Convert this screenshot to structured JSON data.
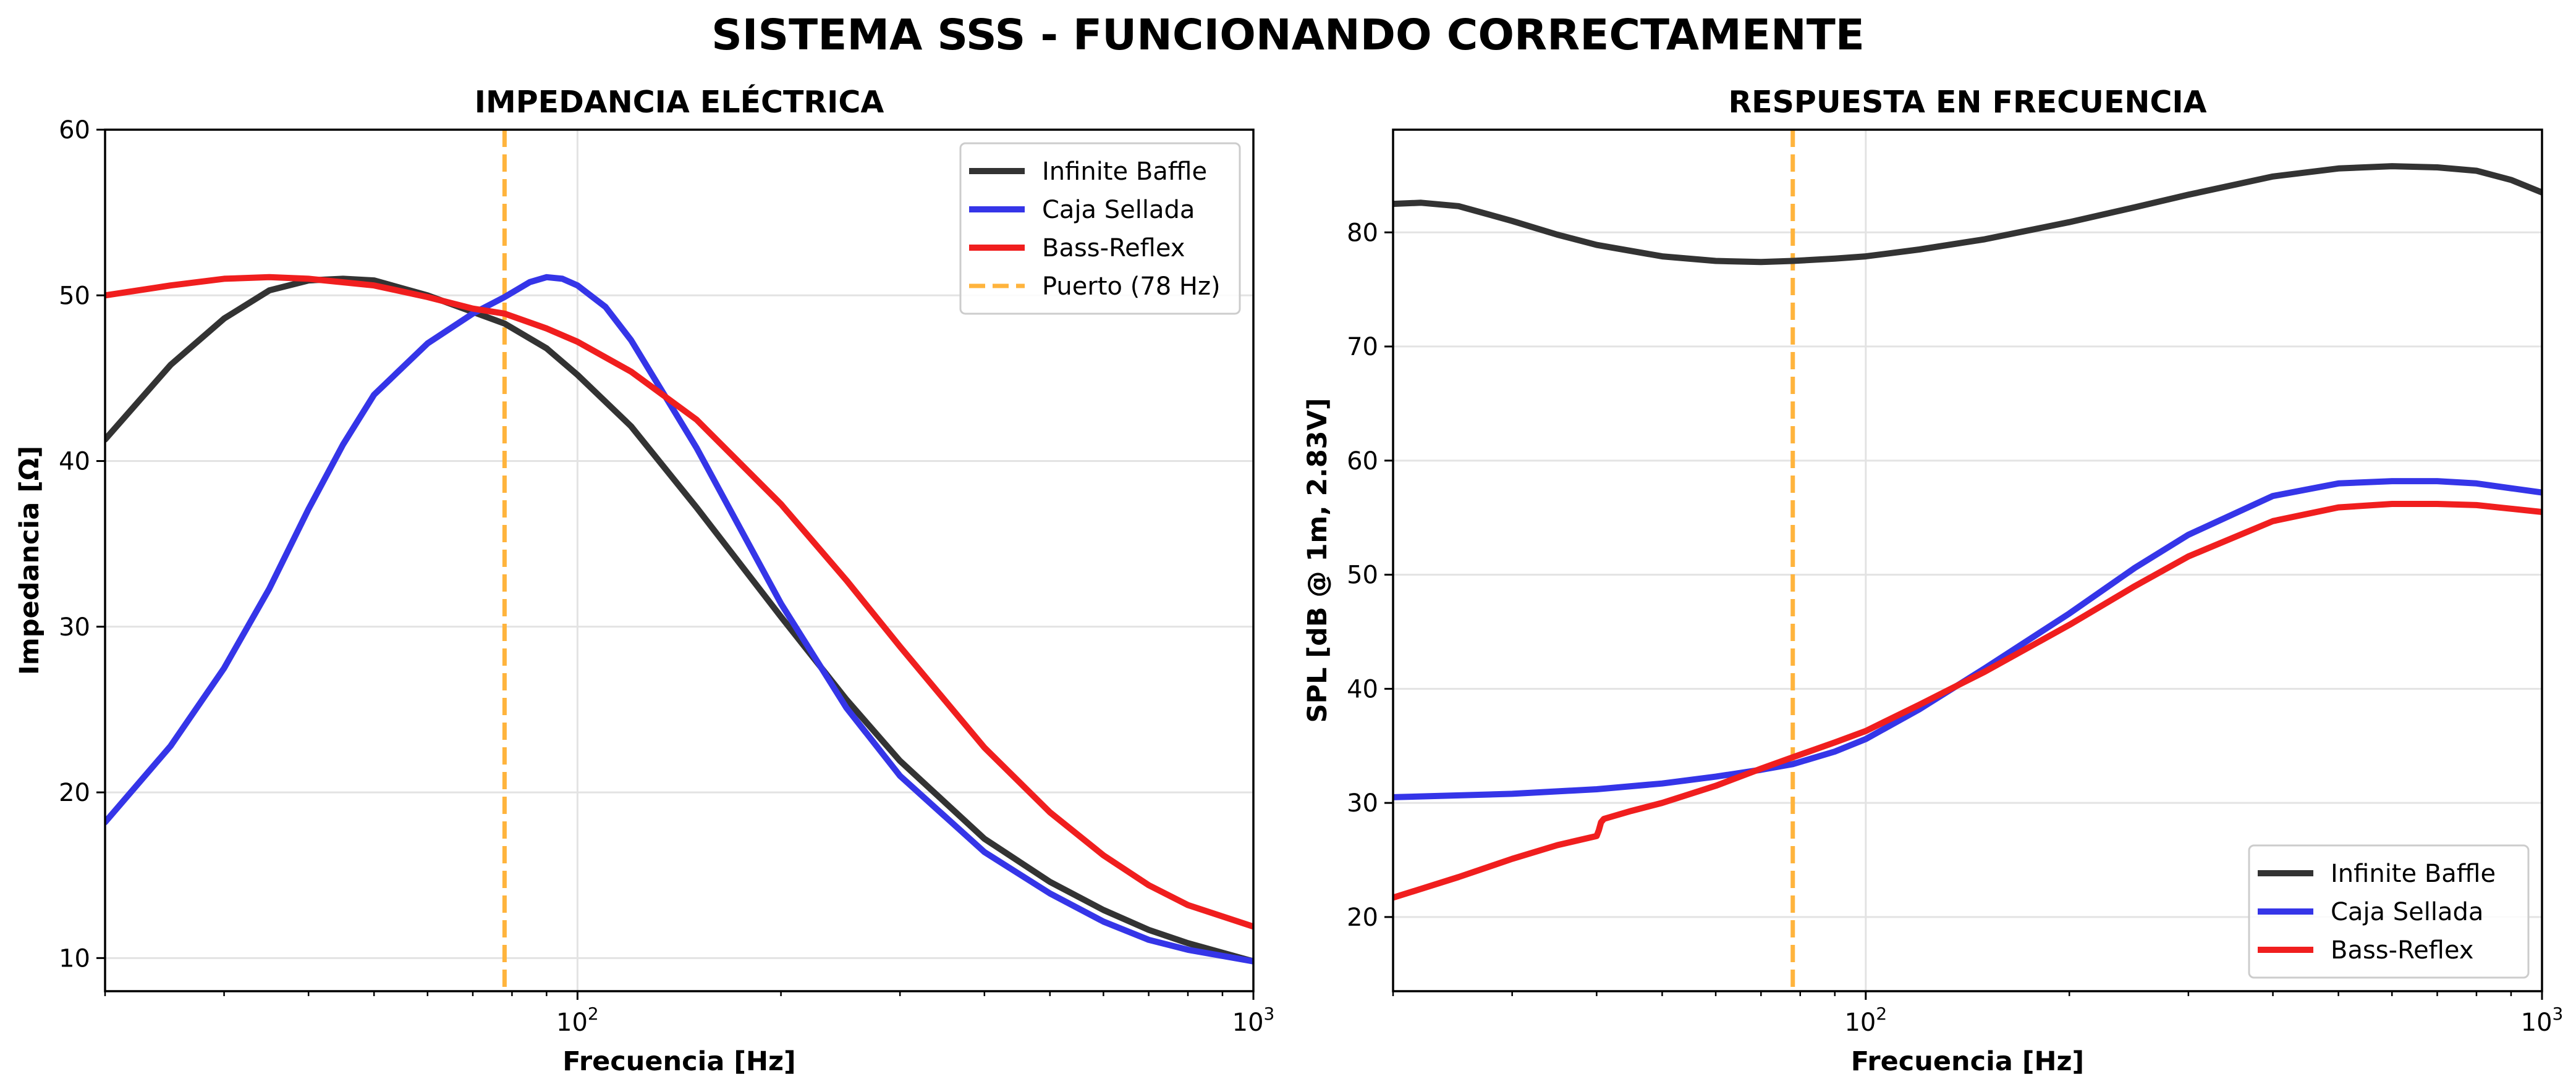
{
  "figure": {
    "suptitle": "SISTEMA SSS - FUNCIONANDO CORRECTAMENTE"
  },
  "chart_data": [
    {
      "type": "line",
      "title": "IMPEDANCIA ELÉCTRICA",
      "xlabel": "Frecuencia [Hz]",
      "ylabel": "Impedancia [Ω]",
      "xscale": "log",
      "xlim": [
        20,
        1000
      ],
      "ylim": [
        8,
        60
      ],
      "yticks": [
        10,
        20,
        30,
        40,
        50,
        60
      ],
      "xticks": [
        {
          "value": 100,
          "base": "10",
          "exp": "2"
        },
        {
          "value": 1000,
          "base": "10",
          "exp": "3"
        }
      ],
      "grid": true,
      "legend": "top-right",
      "vline": {
        "x": 78,
        "name": "Puerto (78 Hz)",
        "color": "#ffb43d",
        "dashed": true
      },
      "series": [
        {
          "name": "Infinite Baffle",
          "color": "#333333",
          "x": [
            20,
            25,
            30,
            35,
            40,
            45,
            50,
            60,
            70,
            78,
            90,
            100,
            120,
            150,
            200,
            250,
            300,
            400,
            500,
            600,
            700,
            800,
            1000
          ],
          "y": [
            41.3,
            45.8,
            48.6,
            50.3,
            50.9,
            51.0,
            50.9,
            50.0,
            49.0,
            48.3,
            46.8,
            45.2,
            42.1,
            37.2,
            30.6,
            25.6,
            21.9,
            17.2,
            14.6,
            12.9,
            11.7,
            10.9,
            9.8
          ]
        },
        {
          "name": "Caja Sellada",
          "color": "#3535e8",
          "x": [
            20,
            25,
            30,
            35,
            40,
            45,
            50,
            60,
            70,
            78,
            85,
            90,
            95,
            100,
            110,
            120,
            150,
            200,
            250,
            300,
            400,
            500,
            600,
            700,
            800,
            1000
          ],
          "y": [
            18.2,
            22.8,
            27.5,
            32.3,
            37.1,
            41.0,
            44.0,
            47.1,
            48.9,
            49.9,
            50.8,
            51.1,
            51.0,
            50.6,
            49.3,
            47.3,
            40.8,
            31.4,
            25.1,
            21.0,
            16.4,
            13.9,
            12.2,
            11.1,
            10.5,
            9.8
          ]
        },
        {
          "name": "Bass-Reflex",
          "color": "#f01e1e",
          "x": [
            20,
            25,
            30,
            35,
            40,
            50,
            60,
            70,
            78,
            90,
            100,
            120,
            150,
            200,
            250,
            300,
            400,
            500,
            600,
            700,
            800,
            1000
          ],
          "y": [
            50.0,
            50.6,
            51.0,
            51.1,
            51.0,
            50.6,
            49.9,
            49.2,
            48.9,
            48.0,
            47.2,
            45.4,
            42.5,
            37.4,
            32.8,
            28.8,
            22.7,
            18.8,
            16.2,
            14.4,
            13.2,
            11.9
          ]
        }
      ]
    },
    {
      "type": "line",
      "title": "RESPUESTA EN FRECUENCIA",
      "xlabel": "Frecuencia [Hz]",
      "ylabel": "SPL [dB @ 1m, 2.83V]",
      "xscale": "log",
      "xlim": [
        20,
        1000
      ],
      "ylim": [
        13.5,
        89
      ],
      "yticks": [
        20,
        30,
        40,
        50,
        60,
        70,
        80
      ],
      "xticks": [
        {
          "value": 100,
          "base": "10",
          "exp": "2"
        },
        {
          "value": 1000,
          "base": "10",
          "exp": "3"
        }
      ],
      "grid": true,
      "legend": "bottom-right",
      "vline": {
        "x": 78,
        "color": "#ffb43d",
        "dashed": true
      },
      "series": [
        {
          "name": "Infinite Baffle",
          "color": "#333333",
          "x": [
            20,
            22,
            25,
            30,
            35,
            40,
            50,
            60,
            70,
            78,
            90,
            100,
            120,
            150,
            200,
            250,
            300,
            400,
            500,
            600,
            700,
            800,
            900,
            1000
          ],
          "y": [
            82.5,
            82.6,
            82.3,
            81.0,
            79.8,
            78.9,
            77.9,
            77.5,
            77.4,
            77.5,
            77.7,
            77.9,
            78.5,
            79.4,
            80.9,
            82.2,
            83.3,
            84.9,
            85.6,
            85.8,
            85.7,
            85.4,
            84.6,
            83.5
          ]
        },
        {
          "name": "Caja Sellada",
          "color": "#3535e8",
          "x": [
            20,
            30,
            40,
            50,
            60,
            70,
            78,
            90,
            100,
            120,
            150,
            200,
            250,
            300,
            400,
            500,
            600,
            700,
            800,
            1000
          ],
          "y": [
            30.5,
            30.8,
            31.2,
            31.7,
            32.3,
            32.9,
            33.4,
            34.5,
            35.6,
            38.2,
            41.8,
            46.6,
            50.6,
            53.5,
            56.9,
            58.0,
            58.2,
            58.2,
            58.0,
            57.2
          ]
        },
        {
          "name": "Bass-Reflex",
          "color": "#f01e1e",
          "x": [
            20,
            25,
            30,
            35,
            40,
            40.3,
            40.6,
            41,
            45,
            50,
            60,
            70,
            78,
            90,
            100,
            120,
            150,
            200,
            250,
            300,
            400,
            500,
            600,
            700,
            800,
            1000
          ],
          "y": [
            21.7,
            23.5,
            25.1,
            26.3,
            27.1,
            27.6,
            28.3,
            28.6,
            29.3,
            30.0,
            31.5,
            33.0,
            34.0,
            35.3,
            36.3,
            38.6,
            41.5,
            45.6,
            49.0,
            51.6,
            54.7,
            55.9,
            56.2,
            56.2,
            56.1,
            55.5
          ]
        }
      ]
    }
  ]
}
